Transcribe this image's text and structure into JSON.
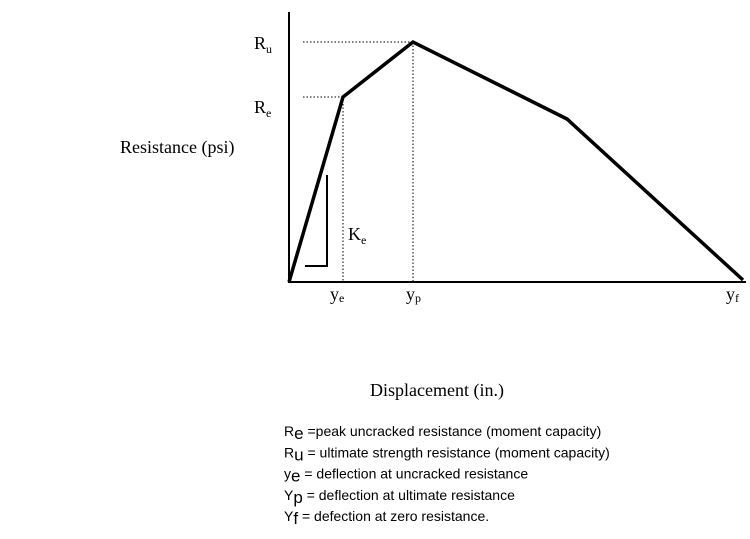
{
  "axis_labels": {
    "y": "Resistance (psi)",
    "x": "Displacement (in.)"
  },
  "points": {
    "ru": {
      "main": "R",
      "sub": "u"
    },
    "re": {
      "main": "R",
      "sub": "e"
    },
    "ye": {
      "main": "y",
      "sub": "e"
    },
    "yp": {
      "main": "y",
      "sub": "p"
    },
    "yf": {
      "main": "y",
      "sub": "f"
    },
    "ke": {
      "main": "K",
      "sub": "e"
    }
  },
  "legend": [
    {
      "main": "R",
      "sub": "e",
      "text": " =peak uncracked resistance (moment capacity)"
    },
    {
      "main": "R",
      "sub": "u",
      "text": " = ultimate strength resistance (moment capacity)"
    },
    {
      "main": "y",
      "sub": "e",
      "text": " = deflection at uncracked resistance"
    },
    {
      "main": "Y",
      "sub": "p",
      "text": " = deflection at ultimate resistance"
    },
    {
      "main": "Y",
      "sub": "f",
      "text": " = defection at zero resistance."
    }
  ]
}
